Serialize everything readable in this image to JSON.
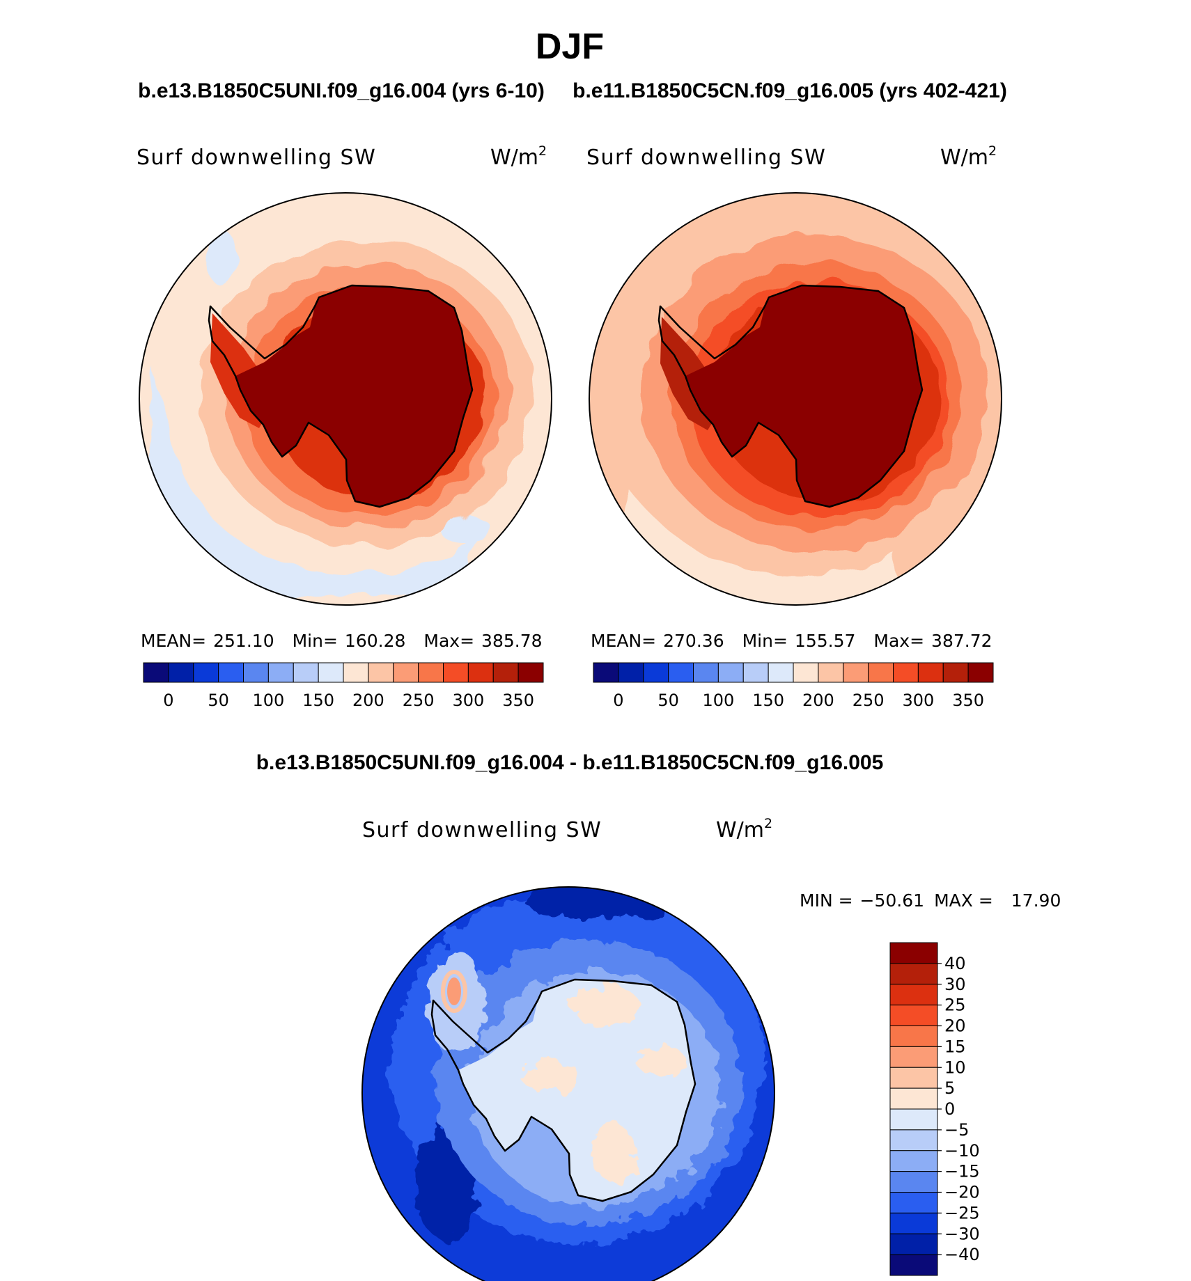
{
  "chart_data": {
    "type": "polar-contour-map",
    "title": "DJF",
    "panels": [
      {
        "id": "case1",
        "case_title": "b.e13.B1850C5UNI.f09_g16.004 (yrs 6-10)",
        "variable": "Surf downwelling SW",
        "units_base": "W/m",
        "units_exp": "2",
        "stats": {
          "mean_label": "MEAN=",
          "mean": "251.10",
          "min_label": "Min=",
          "min": "160.28",
          "max_label": "Max=",
          "max": "385.78"
        },
        "colorbar": {
          "orientation": "horizontal",
          "tick_labels": [
            "0",
            "50",
            "100",
            "150",
            "200",
            "250",
            "300",
            "350"
          ],
          "colors": [
            "#0a0a78",
            "#0020a8",
            "#0a3ad8",
            "#2a5ef0",
            "#5a86f0",
            "#8cadf5",
            "#b8cdf8",
            "#dde9fa",
            "#fde6d4",
            "#fcc5a6",
            "#fb9c76",
            "#f87649",
            "#f44d26",
            "#dc3010",
            "#b4200a",
            "#8b0000"
          ]
        },
        "regions": {
          "ice_sheet": 385,
          "coast_ring": 330,
          "sea_ice_ring": 290,
          "ocean_ring": 250,
          "open_ocean": 210,
          "cloudy_belt": 170
        }
      },
      {
        "id": "case2",
        "case_title": "b.e11.B1850C5CN.f09_g16.005 (yrs 402-421)",
        "variable": "Surf downwelling SW",
        "units_base": "W/m",
        "units_exp": "2",
        "stats": {
          "mean_label": "MEAN=",
          "mean": "270.36",
          "min_label": "Min=",
          "min": "155.57",
          "max_label": "Max=",
          "max": "387.72"
        },
        "colorbar": {
          "orientation": "horizontal",
          "tick_labels": [
            "0",
            "50",
            "100",
            "150",
            "200",
            "250",
            "300",
            "350"
          ],
          "colors": [
            "#0a0a78",
            "#0020a8",
            "#0a3ad8",
            "#2a5ef0",
            "#5a86f0",
            "#8cadf5",
            "#b8cdf8",
            "#dde9fa",
            "#fde6d4",
            "#fcc5a6",
            "#fb9c76",
            "#f87649",
            "#f44d26",
            "#dc3010",
            "#b4200a",
            "#8b0000"
          ]
        },
        "regions": {
          "ice_sheet": 387,
          "coast_ring": 340,
          "sea_ice_ring": 300,
          "ocean_ring": 270,
          "open_ocean": 235,
          "cloudy_belt": 195
        }
      },
      {
        "id": "diff",
        "case_title": "b.e13.B1850C5UNI.f09_g16.004 - b.e11.B1850C5CN.f09_g16.005",
        "variable": "Surf downwelling SW",
        "units_base": "W/m",
        "units_exp": "2",
        "stats": {
          "min_label": "MIN =",
          "min": "−50.61",
          "max_label": "MAX =",
          "max": "17.90"
        },
        "colorbar": {
          "orientation": "vertical",
          "tick_labels": [
            "40",
            "30",
            "25",
            "20",
            "15",
            "10",
            "5",
            "0",
            "−5",
            "−10",
            "−15",
            "−20",
            "−25",
            "−30",
            "−40"
          ],
          "colors_top_to_bottom": [
            "#8b0000",
            "#b4200a",
            "#dc3010",
            "#f44d26",
            "#f87649",
            "#fb9c76",
            "#fcc5a6",
            "#fde6d4",
            "#dde9fa",
            "#b8cdf8",
            "#8cadf5",
            "#5a86f0",
            "#2a5ef0",
            "#0a3ad8",
            "#0020a8",
            "#0a0a78"
          ]
        },
        "regions": {
          "ice_sheet": -2,
          "ice_patches": 3,
          "coast_ring": -8,
          "ocean": -28,
          "deep_minimum": -45,
          "peninsula_max": 16
        }
      }
    ]
  }
}
